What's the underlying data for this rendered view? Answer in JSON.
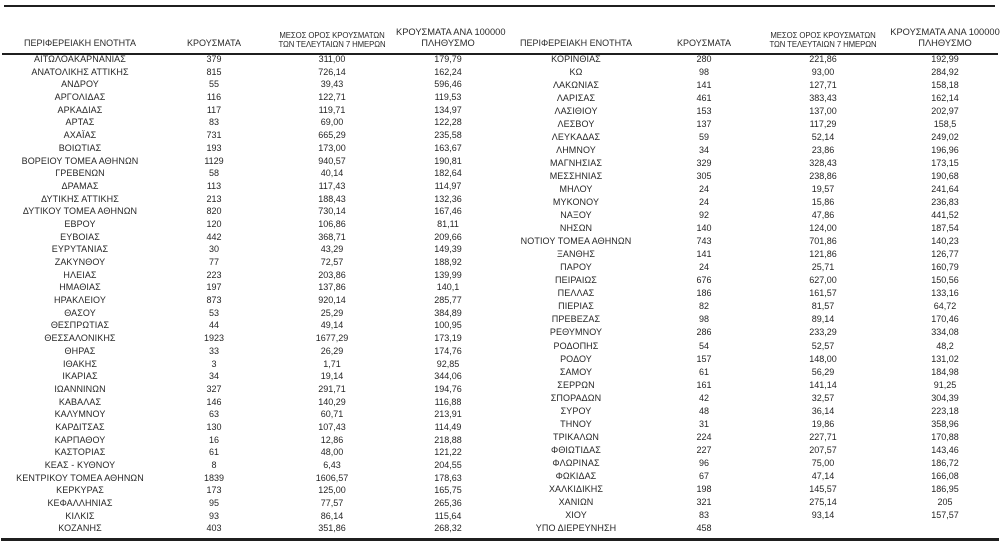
{
  "colors": {
    "background": "#ffffff",
    "text": "#262626",
    "rule": "#1f1f1f"
  },
  "table": {
    "columns": [
      {
        "label": "ΠΕΡΙΦΕΡΕΙΑΚΗ ΕΝΟΤΗΤΑ"
      },
      {
        "label": "ΚΡΟΥΣΜΑΤΑ"
      },
      {
        "line1": "ΜΕΣΟΣ ΟΡΟΣ ΚΡΟΥΣΜΑΤΩΝ",
        "line2": "ΤΩΝ ΤΕΛΕΥΤΑΙΩΝ 7 ΗΜΕΡΩΝ"
      },
      {
        "line1": "ΚΡΟΥΣΜΑΤΑ ΑΝΑ 100000",
        "line2": "ΠΛΗΘΥΣΜΟ"
      }
    ],
    "left_rows": [
      [
        "ΑΙΤΩΛΟΑΚΑΡΝΑΝΙΑΣ",
        "379",
        "311,00",
        "179,79"
      ],
      [
        "ΑΝΑΤΟΛΙΚΗΣ ΑΤΤΙΚΗΣ",
        "815",
        "726,14",
        "162,24"
      ],
      [
        "ΑΝΔΡΟΥ",
        "55",
        "39,43",
        "596,46"
      ],
      [
        "ΑΡΓΟΛΙΔΑΣ",
        "116",
        "122,71",
        "119,53"
      ],
      [
        "ΑΡΚΑΔΙΑΣ",
        "117",
        "119,71",
        "134,97"
      ],
      [
        "ΑΡΤΑΣ",
        "83",
        "69,00",
        "122,28"
      ],
      [
        "ΑΧΑΪΑΣ",
        "731",
        "665,29",
        "235,58"
      ],
      [
        "ΒΟΙΩΤΙΑΣ",
        "193",
        "173,00",
        "163,67"
      ],
      [
        "ΒΟΡΕΙΟΥ ΤΟΜΕΑ ΑΘΗΝΩΝ",
        "1129",
        "940,57",
        "190,81"
      ],
      [
        "ΓΡΕΒΕΝΩΝ",
        "58",
        "40,14",
        "182,64"
      ],
      [
        "ΔΡΑΜΑΣ",
        "113",
        "117,43",
        "114,97"
      ],
      [
        "ΔΥΤΙΚΗΣ ΑΤΤΙΚΗΣ",
        "213",
        "188,43",
        "132,36"
      ],
      [
        "ΔΥΤΙΚΟΥ ΤΟΜΕΑ ΑΘΗΝΩΝ",
        "820",
        "730,14",
        "167,46"
      ],
      [
        "ΕΒΡΟΥ",
        "120",
        "106,86",
        "81,11"
      ],
      [
        "ΕΥΒΟΙΑΣ",
        "442",
        "368,71",
        "209,66"
      ],
      [
        "ΕΥΡΥΤΑΝΙΑΣ",
        "30",
        "43,29",
        "149,39"
      ],
      [
        "ΖΑΚΥΝΘΟΥ",
        "77",
        "72,57",
        "188,92"
      ],
      [
        "ΗΛΕΙΑΣ",
        "223",
        "203,86",
        "139,99"
      ],
      [
        "ΗΜΑΘΙΑΣ",
        "197",
        "137,86",
        "140,1"
      ],
      [
        "ΗΡΑΚΛΕΙΟΥ",
        "873",
        "920,14",
        "285,77"
      ],
      [
        "ΘΑΣΟΥ",
        "53",
        "25,29",
        "384,89"
      ],
      [
        "ΘΕΣΠΡΩΤΙΑΣ",
        "44",
        "49,14",
        "100,95"
      ],
      [
        "ΘΕΣΣΑΛΟΝΙΚΗΣ",
        "1923",
        "1677,29",
        "173,19"
      ],
      [
        "ΘΗΡΑΣ",
        "33",
        "26,29",
        "174,76"
      ],
      [
        "ΙΘΑΚΗΣ",
        "3",
        "1,71",
        "92,85"
      ],
      [
        "ΙΚΑΡΙΑΣ",
        "34",
        "19,14",
        "344,06"
      ],
      [
        "ΙΩΑΝΝΙΝΩΝ",
        "327",
        "291,71",
        "194,76"
      ],
      [
        "ΚΑΒΑΛΑΣ",
        "146",
        "140,29",
        "116,88"
      ],
      [
        "ΚΑΛΥΜΝΟΥ",
        "63",
        "60,71",
        "213,91"
      ],
      [
        "ΚΑΡΔΙΤΣΑΣ",
        "130",
        "107,43",
        "114,49"
      ],
      [
        "ΚΑΡΠΑΘΟΥ",
        "16",
        "12,86",
        "218,88"
      ],
      [
        "ΚΑΣΤΟΡΙΑΣ",
        "61",
        "48,00",
        "121,22"
      ],
      [
        "ΚΕΑΣ - ΚΥΘΝΟΥ",
        "8",
        "6,43",
        "204,55"
      ],
      [
        "ΚΕΝΤΡΙΚΟΥ ΤΟΜΕΑ ΑΘΗΝΩΝ",
        "1839",
        "1606,57",
        "178,63"
      ],
      [
        "ΚΕΡΚΥΡΑΣ",
        "173",
        "125,00",
        "165,75"
      ],
      [
        "ΚΕΦΑΛΛΗΝΙΑΣ",
        "95",
        "77,57",
        "265,36"
      ],
      [
        "ΚΙΛΚΙΣ",
        "93",
        "86,14",
        "115,64"
      ],
      [
        "ΚΟΖΑΝΗΣ",
        "403",
        "351,86",
        "268,32"
      ]
    ],
    "right_rows": [
      [
        "ΚΟΡΙΝΘΙΑΣ",
        "280",
        "221,86",
        "192,99"
      ],
      [
        "ΚΩ",
        "98",
        "93,00",
        "284,92"
      ],
      [
        "ΛΑΚΩΝΙΑΣ",
        "141",
        "127,71",
        "158,18"
      ],
      [
        "ΛΑΡΙΣΑΣ",
        "461",
        "383,43",
        "162,14"
      ],
      [
        "ΛΑΣΙΘΙΟΥ",
        "153",
        "137,00",
        "202,97"
      ],
      [
        "ΛΕΣΒΟΥ",
        "137",
        "117,29",
        "158,5"
      ],
      [
        "ΛΕΥΚΑΔΑΣ",
        "59",
        "52,14",
        "249,02"
      ],
      [
        "ΛΗΜΝΟΥ",
        "34",
        "23,86",
        "196,96"
      ],
      [
        "ΜΑΓΝΗΣΙΑΣ",
        "329",
        "328,43",
        "173,15"
      ],
      [
        "ΜΕΣΣΗΝΙΑΣ",
        "305",
        "238,86",
        "190,68"
      ],
      [
        "ΜΗΛΟΥ",
        "24",
        "19,57",
        "241,64"
      ],
      [
        "ΜΥΚΟΝΟΥ",
        "24",
        "15,86",
        "236,83"
      ],
      [
        "ΝΑΞΟΥ",
        "92",
        "47,86",
        "441,52"
      ],
      [
        "ΝΗΣΩΝ",
        "140",
        "124,00",
        "187,54"
      ],
      [
        "ΝΟΤΙΟΥ ΤΟΜΕΑ ΑΘΗΝΩΝ",
        "743",
        "701,86",
        "140,23"
      ],
      [
        "ΞΑΝΘΗΣ",
        "141",
        "121,86",
        "126,77"
      ],
      [
        "ΠΑΡΟΥ",
        "24",
        "25,71",
        "160,79"
      ],
      [
        "ΠΕΙΡΑΙΩΣ",
        "676",
        "627,00",
        "150,56"
      ],
      [
        "ΠΕΛΛΑΣ",
        "186",
        "161,57",
        "133,16"
      ],
      [
        "ΠΙΕΡΙΑΣ",
        "82",
        "81,57",
        "64,72"
      ],
      [
        "ΠΡΕΒΕΖΑΣ",
        "98",
        "89,14",
        "170,46"
      ],
      [
        "ΡΕΘΥΜΝΟΥ",
        "286",
        "233,29",
        "334,08"
      ],
      [
        "ΡΟΔΟΠΗΣ",
        "54",
        "52,57",
        "48,2"
      ],
      [
        "ΡΟΔΟΥ",
        "157",
        "148,00",
        "131,02"
      ],
      [
        "ΣΑΜΟΥ",
        "61",
        "56,29",
        "184,98"
      ],
      [
        "ΣΕΡΡΩΝ",
        "161",
        "141,14",
        "91,25"
      ],
      [
        "ΣΠΟΡΑΔΩΝ",
        "42",
        "32,57",
        "304,39"
      ],
      [
        "ΣΥΡΟΥ",
        "48",
        "36,14",
        "223,18"
      ],
      [
        "ΤΗΝΟΥ",
        "31",
        "19,86",
        "358,96"
      ],
      [
        "ΤΡΙΚΑΛΩΝ",
        "224",
        "227,71",
        "170,88"
      ],
      [
        "ΦΘΙΩΤΙΔΑΣ",
        "227",
        "207,57",
        "143,46"
      ],
      [
        "ΦΛΩΡΙΝΑΣ",
        "96",
        "75,00",
        "186,72"
      ],
      [
        "ΦΩΚΙΔΑΣ",
        "67",
        "47,14",
        "166,08"
      ],
      [
        "ΧΑΛΚΙΔΙΚΗΣ",
        "198",
        "145,57",
        "186,95"
      ],
      [
        "ΧΑΝΙΩΝ",
        "321",
        "275,14",
        "205"
      ],
      [
        "ΧΙΟΥ",
        "83",
        "93,14",
        "157,57"
      ],
      [
        "ΥΠΟ ΔΙΕΡΕΥΝΗΣΗ",
        "458",
        "",
        ""
      ]
    ]
  }
}
